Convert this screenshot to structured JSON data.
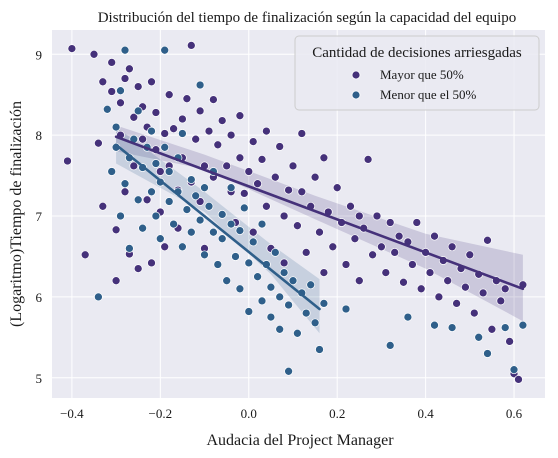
{
  "chart_data": {
    "type": "scatter",
    "title": "Distribución del tiempo de finalización según la capacidad del equipo",
    "xlabel": "Audacia del Project Manager",
    "ylabel": "(Logaritmo)Tiempo de finalización",
    "xlim": [
      -0.445,
      0.67
    ],
    "ylim": [
      4.75,
      9.3
    ],
    "x_ticks": [
      -0.4,
      -0.2,
      0.0,
      0.2,
      0.4,
      0.6
    ],
    "x_tick_labels": [
      "−0.4",
      "−0.2",
      "0.0",
      "0.2",
      "0.4",
      "0.6"
    ],
    "y_ticks": [
      5,
      6,
      7,
      8,
      9
    ],
    "y_tick_labels": [
      "5",
      "6",
      "7",
      "8",
      "9"
    ],
    "grid": true,
    "legend": {
      "title": "Cantidad de decisiones arriesgadas",
      "placement": "top-right"
    },
    "series": [
      {
        "name": "Mayor que 50%",
        "color": "#45317a",
        "trend": {
          "x": [
            -0.3,
            0.62
          ],
          "y": [
            7.98,
            6.1
          ]
        },
        "band": {
          "x": [
            -0.3,
            -0.1,
            0.15,
            0.4,
            0.62
          ],
          "lower": [
            7.8,
            7.58,
            6.96,
            6.35,
            5.7
          ],
          "upper": [
            8.12,
            7.76,
            7.25,
            6.78,
            6.52
          ]
        },
        "points": [
          [
            -0.41,
            7.68
          ],
          [
            -0.4,
            9.07
          ],
          [
            -0.37,
            6.52
          ],
          [
            -0.35,
            9.0
          ],
          [
            -0.34,
            7.9
          ],
          [
            -0.33,
            8.66
          ],
          [
            -0.33,
            7.12
          ],
          [
            -0.31,
            8.9
          ],
          [
            -0.31,
            8.54
          ],
          [
            -0.3,
            6.83
          ],
          [
            -0.3,
            6.2
          ],
          [
            -0.29,
            8.4
          ],
          [
            -0.29,
            8.0
          ],
          [
            -0.28,
            7.3
          ],
          [
            -0.28,
            8.7
          ],
          [
            -0.27,
            6.53
          ],
          [
            -0.27,
            8.82
          ],
          [
            -0.26,
            8.22
          ],
          [
            -0.26,
            7.62
          ],
          [
            -0.25,
            8.6
          ],
          [
            -0.25,
            6.35
          ],
          [
            -0.24,
            7.95
          ],
          [
            -0.24,
            8.35
          ],
          [
            -0.23,
            7.2
          ],
          [
            -0.23,
            8.1
          ],
          [
            -0.22,
            8.66
          ],
          [
            -0.22,
            6.42
          ],
          [
            -0.21,
            7.82
          ],
          [
            -0.21,
            8.28
          ],
          [
            -0.2,
            7.05
          ],
          [
            -0.2,
            7.55
          ],
          [
            -0.19,
            8.02
          ],
          [
            -0.19,
            6.62
          ],
          [
            -0.18,
            8.5
          ],
          [
            -0.18,
            7.62
          ],
          [
            -0.17,
            8.08
          ],
          [
            -0.16,
            7.32
          ],
          [
            -0.16,
            6.85
          ],
          [
            -0.15,
            8.2
          ],
          [
            -0.15,
            7.72
          ],
          [
            -0.14,
            8.45
          ],
          [
            -0.13,
            7.42
          ],
          [
            -0.13,
            9.11
          ],
          [
            -0.12,
            7.95
          ],
          [
            -0.11,
            7.18
          ],
          [
            -0.11,
            8.3
          ],
          [
            -0.1,
            7.62
          ],
          [
            -0.1,
            6.6
          ],
          [
            -0.09,
            8.05
          ],
          [
            -0.08,
            7.48
          ],
          [
            -0.08,
            8.44
          ],
          [
            -0.07,
            7.88
          ],
          [
            -0.06,
            7.02
          ],
          [
            -0.06,
            8.18
          ],
          [
            -0.05,
            7.62
          ],
          [
            -0.04,
            7.3
          ],
          [
            -0.04,
            8.0
          ],
          [
            -0.03,
            6.92
          ],
          [
            -0.02,
            7.72
          ],
          [
            -0.02,
            8.24
          ],
          [
            -0.01,
            7.28
          ],
          [
            0.0,
            7.55
          ],
          [
            0.01,
            7.92
          ],
          [
            0.01,
            6.8
          ],
          [
            0.02,
            7.4
          ],
          [
            0.03,
            7.7
          ],
          [
            0.04,
            7.12
          ],
          [
            0.04,
            8.05
          ],
          [
            0.05,
            6.6
          ],
          [
            0.06,
            7.48
          ],
          [
            0.07,
            7.86
          ],
          [
            0.08,
            7.0
          ],
          [
            0.08,
            6.42
          ],
          [
            0.09,
            7.32
          ],
          [
            0.1,
            7.62
          ],
          [
            0.11,
            6.88
          ],
          [
            0.12,
            7.3
          ],
          [
            0.12,
            8.02
          ],
          [
            0.13,
            6.55
          ],
          [
            0.14,
            7.12
          ],
          [
            0.15,
            7.48
          ],
          [
            0.16,
            6.8
          ],
          [
            0.17,
            7.72
          ],
          [
            0.17,
            6.3
          ],
          [
            0.18,
            7.05
          ],
          [
            0.19,
            6.62
          ],
          [
            0.2,
            7.35
          ],
          [
            0.21,
            6.92
          ],
          [
            0.22,
            6.4
          ],
          [
            0.23,
            7.12
          ],
          [
            0.24,
            6.72
          ],
          [
            0.25,
            7.0
          ],
          [
            0.25,
            6.2
          ],
          [
            0.26,
            6.85
          ],
          [
            0.27,
            7.7
          ],
          [
            0.28,
            6.52
          ],
          [
            0.29,
            7.0
          ],
          [
            0.3,
            6.62
          ],
          [
            0.31,
            6.3
          ],
          [
            0.32,
            6.92
          ],
          [
            0.33,
            6.55
          ],
          [
            0.34,
            6.75
          ],
          [
            0.35,
            6.18
          ],
          [
            0.36,
            6.68
          ],
          [
            0.37,
            6.4
          ],
          [
            0.38,
            6.92
          ],
          [
            0.39,
            6.1
          ],
          [
            0.4,
            6.55
          ],
          [
            0.41,
            6.3
          ],
          [
            0.42,
            6.75
          ],
          [
            0.43,
            6.0
          ],
          [
            0.44,
            6.45
          ],
          [
            0.45,
            6.2
          ],
          [
            0.46,
            6.62
          ],
          [
            0.47,
            5.92
          ],
          [
            0.48,
            6.35
          ],
          [
            0.49,
            6.12
          ],
          [
            0.5,
            6.52
          ],
          [
            0.51,
            5.8
          ],
          [
            0.52,
            6.28
          ],
          [
            0.53,
            6.05
          ],
          [
            0.54,
            6.7
          ],
          [
            0.55,
            5.6
          ],
          [
            0.56,
            6.2
          ],
          [
            0.57,
            5.95
          ],
          [
            0.58,
            6.1
          ],
          [
            0.59,
            5.45
          ],
          [
            0.6,
            5.05
          ],
          [
            0.61,
            4.98
          ],
          [
            0.62,
            6.15
          ]
        ]
      },
      {
        "name": "Menor que el 50%",
        "color": "#2f5f8a",
        "trend": {
          "x": [
            -0.3,
            0.16
          ],
          "y": [
            7.88,
            5.85
          ]
        },
        "band": {
          "x": [
            -0.3,
            -0.1,
            0.05,
            0.16
          ],
          "lower": [
            7.65,
            7.05,
            6.28,
            5.55
          ],
          "upper": [
            8.1,
            7.3,
            6.65,
            6.22
          ]
        },
        "points": [
          [
            -0.34,
            6.0
          ],
          [
            -0.32,
            8.32
          ],
          [
            -0.31,
            7.55
          ],
          [
            -0.3,
            7.85
          ],
          [
            -0.3,
            8.1
          ],
          [
            -0.29,
            7.0
          ],
          [
            -0.29,
            8.55
          ],
          [
            -0.28,
            7.4
          ],
          [
            -0.28,
            9.05
          ],
          [
            -0.27,
            7.72
          ],
          [
            -0.27,
            6.6
          ],
          [
            -0.26,
            7.95
          ],
          [
            -0.25,
            7.2
          ],
          [
            -0.25,
            8.3
          ],
          [
            -0.24,
            7.6
          ],
          [
            -0.24,
            6.85
          ],
          [
            -0.23,
            7.85
          ],
          [
            -0.22,
            7.3
          ],
          [
            -0.22,
            8.05
          ],
          [
            -0.21,
            7.0
          ],
          [
            -0.21,
            7.65
          ],
          [
            -0.2,
            7.42
          ],
          [
            -0.2,
            6.72
          ],
          [
            -0.19,
            9.05
          ],
          [
            -0.19,
            7.85
          ],
          [
            -0.18,
            7.18
          ],
          [
            -0.18,
            7.55
          ],
          [
            -0.17,
            6.9
          ],
          [
            -0.16,
            7.72
          ],
          [
            -0.16,
            7.3
          ],
          [
            -0.15,
            6.62
          ],
          [
            -0.15,
            8.02
          ],
          [
            -0.14,
            7.08
          ],
          [
            -0.13,
            7.45
          ],
          [
            -0.13,
            6.8
          ],
          [
            -0.12,
            7.25
          ],
          [
            -0.11,
            8.62
          ],
          [
            -0.11,
            6.95
          ],
          [
            -0.1,
            7.35
          ],
          [
            -0.1,
            6.52
          ],
          [
            -0.09,
            7.12
          ],
          [
            -0.08,
            6.8
          ],
          [
            -0.08,
            7.55
          ],
          [
            -0.07,
            6.4
          ],
          [
            -0.06,
            7.02
          ],
          [
            -0.06,
            6.72
          ],
          [
            -0.05,
            6.2
          ],
          [
            -0.04,
            6.9
          ],
          [
            -0.04,
            7.35
          ],
          [
            -0.03,
            6.5
          ],
          [
            -0.02,
            6.82
          ],
          [
            -0.02,
            6.1
          ],
          [
            -0.01,
            7.1
          ],
          [
            0.0,
            6.42
          ],
          [
            0.0,
            5.82
          ],
          [
            0.01,
            6.68
          ],
          [
            0.02,
            6.25
          ],
          [
            0.03,
            5.95
          ],
          [
            0.03,
            6.9
          ],
          [
            0.04,
            6.4
          ],
          [
            0.05,
            6.12
          ],
          [
            0.05,
            5.75
          ],
          [
            0.06,
            6.55
          ],
          [
            0.07,
            6.0
          ],
          [
            0.07,
            5.6
          ],
          [
            0.08,
            6.3
          ],
          [
            0.09,
            5.9
          ],
          [
            0.09,
            5.08
          ],
          [
            0.1,
            6.2
          ],
          [
            0.11,
            5.55
          ],
          [
            0.12,
            6.05
          ],
          [
            0.13,
            5.8
          ],
          [
            0.14,
            6.15
          ],
          [
            0.15,
            5.68
          ],
          [
            0.16,
            5.35
          ],
          [
            0.17,
            5.92
          ],
          [
            0.22,
            5.85
          ],
          [
            0.32,
            5.4
          ],
          [
            0.36,
            5.75
          ],
          [
            0.42,
            5.65
          ],
          [
            0.46,
            5.62
          ],
          [
            0.52,
            5.5
          ],
          [
            0.54,
            5.3
          ],
          [
            0.58,
            5.62
          ],
          [
            0.6,
            5.1
          ],
          [
            0.62,
            5.65
          ]
        ]
      }
    ]
  }
}
